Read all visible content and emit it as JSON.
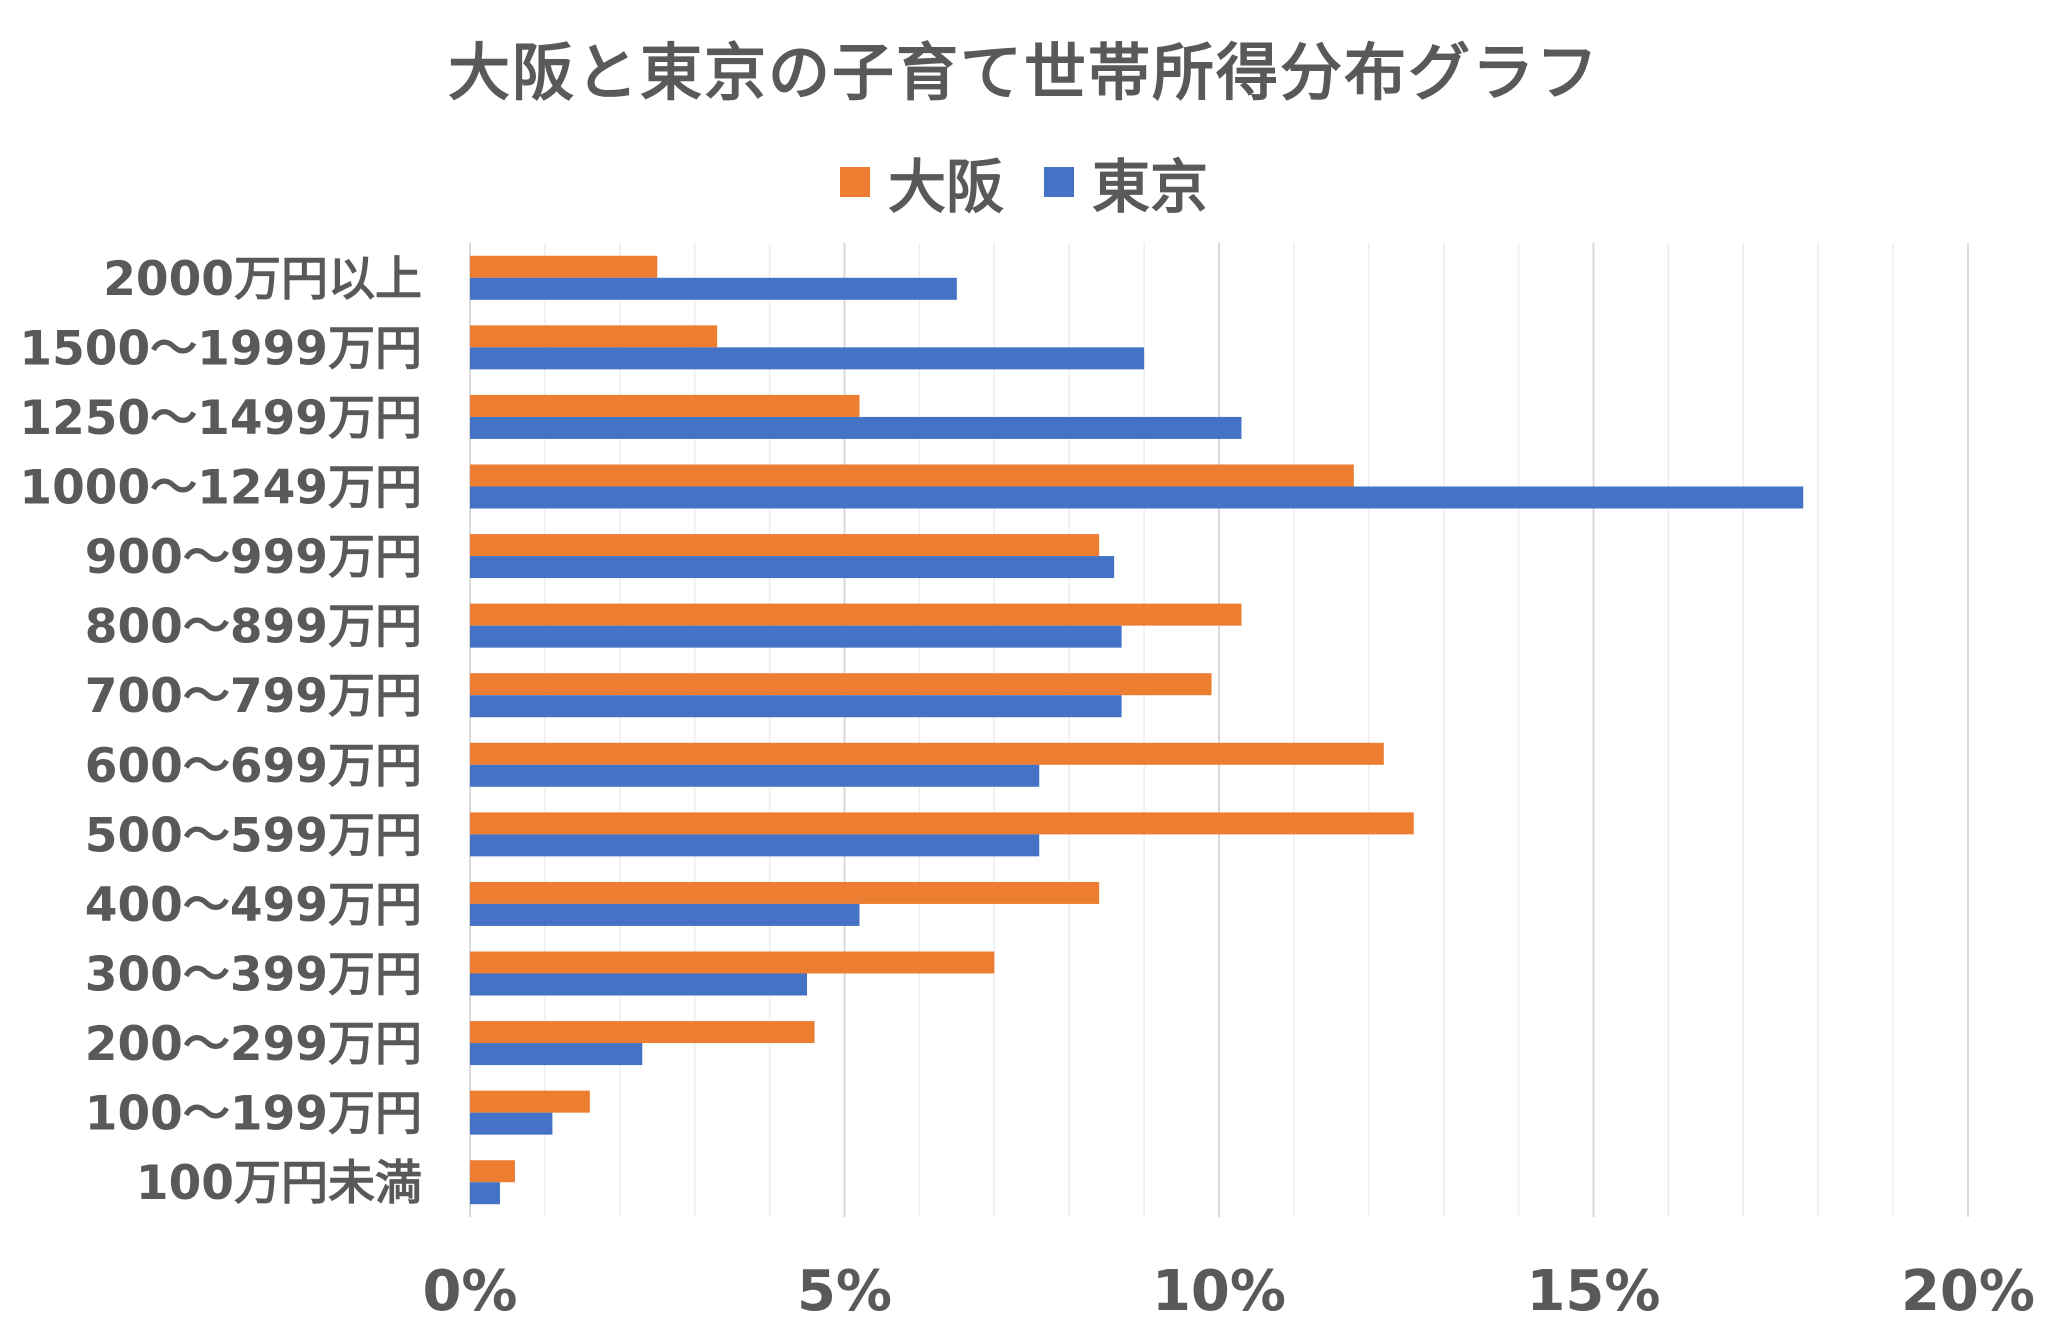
{
  "chart_data": {
    "type": "bar",
    "orientation": "horizontal",
    "title": "大阪と東京の子育て世帯所得分布グラフ",
    "categories": [
      "2000万円以上",
      "1500～1999万円",
      "1250～1499万円",
      "1000～1249万円",
      "900～999万円",
      "800～899万円",
      "700～799万円",
      "600～699万円",
      "500～599万円",
      "400～499万円",
      "300～399万円",
      "200～299万円",
      "100～199万円",
      "100万円未満"
    ],
    "series": [
      {
        "name": "大阪",
        "color": "#ED7D31",
        "values": [
          2.5,
          3.3,
          5.2,
          11.8,
          8.4,
          10.3,
          9.9,
          12.2,
          12.6,
          8.4,
          7.0,
          4.6,
          1.6,
          0.6
        ]
      },
      {
        "name": "東京",
        "color": "#4472C4",
        "values": [
          6.5,
          9.0,
          10.3,
          17.8,
          8.6,
          8.7,
          8.7,
          7.6,
          7.6,
          5.2,
          4.5,
          2.3,
          1.1,
          0.4
        ]
      }
    ],
    "xlim": [
      0,
      20
    ],
    "x_ticks": [
      "0%",
      "5%",
      "10%",
      "15%",
      "20%"
    ],
    "grid": true,
    "legend_position": "top"
  }
}
